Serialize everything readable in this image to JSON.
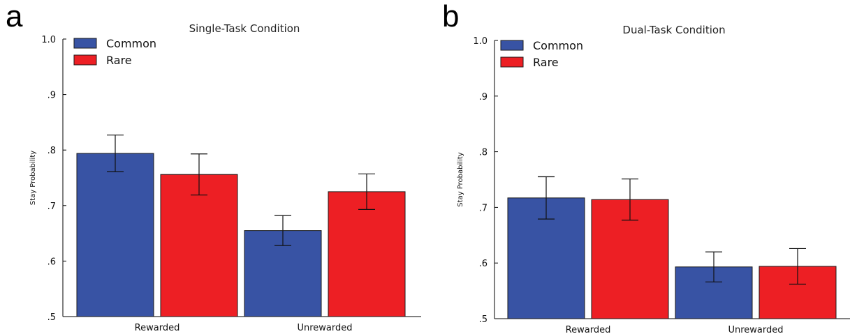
{
  "panels": [
    {
      "letter": "a"
    },
    {
      "letter": "b"
    }
  ],
  "chart_data": [
    {
      "type": "bar",
      "title": "Single-Task Condition",
      "xlabel": "",
      "ylabel": "Stay Probability",
      "ylim": [
        0.5,
        1.0
      ],
      "yticks": [
        0.5,
        0.6,
        0.7,
        0.8,
        0.9,
        1.0
      ],
      "ytick_labels": [
        ".5",
        ".6",
        ".7",
        ".8",
        ".9",
        "1.0"
      ],
      "categories": [
        "Rewarded",
        "Unrewarded"
      ],
      "series": [
        {
          "name": "Common",
          "color": "#3853a4",
          "values": [
            0.794,
            0.655
          ],
          "error": [
            0.033,
            0.027
          ]
        },
        {
          "name": "Rare",
          "color": "#ed1f24",
          "values": [
            0.756,
            0.725
          ],
          "error": [
            0.037,
            0.032
          ]
        }
      ],
      "legend": "top-left"
    },
    {
      "type": "bar",
      "title": "Dual-Task Condition",
      "xlabel": "",
      "ylabel": "Stay Probability",
      "ylim": [
        0.5,
        1.0
      ],
      "yticks": [
        0.5,
        0.6,
        0.7,
        0.8,
        0.9,
        1.0
      ],
      "ytick_labels": [
        ".5",
        ".6",
        ".7",
        ".8",
        ".9",
        "1.0"
      ],
      "categories": [
        "Rewarded",
        "Unrewarded"
      ],
      "series": [
        {
          "name": "Common",
          "color": "#3853a4",
          "values": [
            0.717,
            0.593
          ],
          "error": [
            0.038,
            0.027
          ]
        },
        {
          "name": "Rare",
          "color": "#ed1f24",
          "values": [
            0.714,
            0.594
          ],
          "error": [
            0.037,
            0.032
          ]
        }
      ],
      "legend": "top-left"
    }
  ]
}
